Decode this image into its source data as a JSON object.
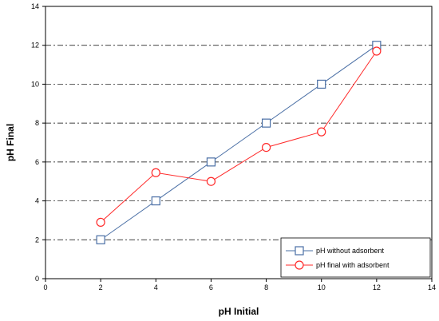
{
  "chart_data": {
    "type": "line",
    "title": "",
    "xlabel": "pH Initial",
    "ylabel": "pH Final",
    "xlim": [
      0,
      14
    ],
    "ylim": [
      0,
      14
    ],
    "xticks": [
      0,
      2,
      4,
      6,
      8,
      10,
      12,
      14
    ],
    "yticks": [
      0,
      2,
      4,
      6,
      8,
      10,
      12,
      14
    ],
    "grid": "horizontal dash-dot",
    "legend_position": "bottom-right",
    "series": [
      {
        "name": "pH without adsorbent",
        "color": "#4a6fa5",
        "marker": "square",
        "x": [
          2,
          4,
          6,
          8,
          10,
          12
        ],
        "y": [
          2,
          4,
          6,
          8,
          10,
          12
        ]
      },
      {
        "name": "pH final with adsorbent",
        "color": "#ff2a2a",
        "marker": "circle",
        "x": [
          2,
          4,
          6,
          8,
          10,
          12
        ],
        "y": [
          2.9,
          5.45,
          5.0,
          6.75,
          7.55,
          11.7
        ]
      }
    ]
  }
}
